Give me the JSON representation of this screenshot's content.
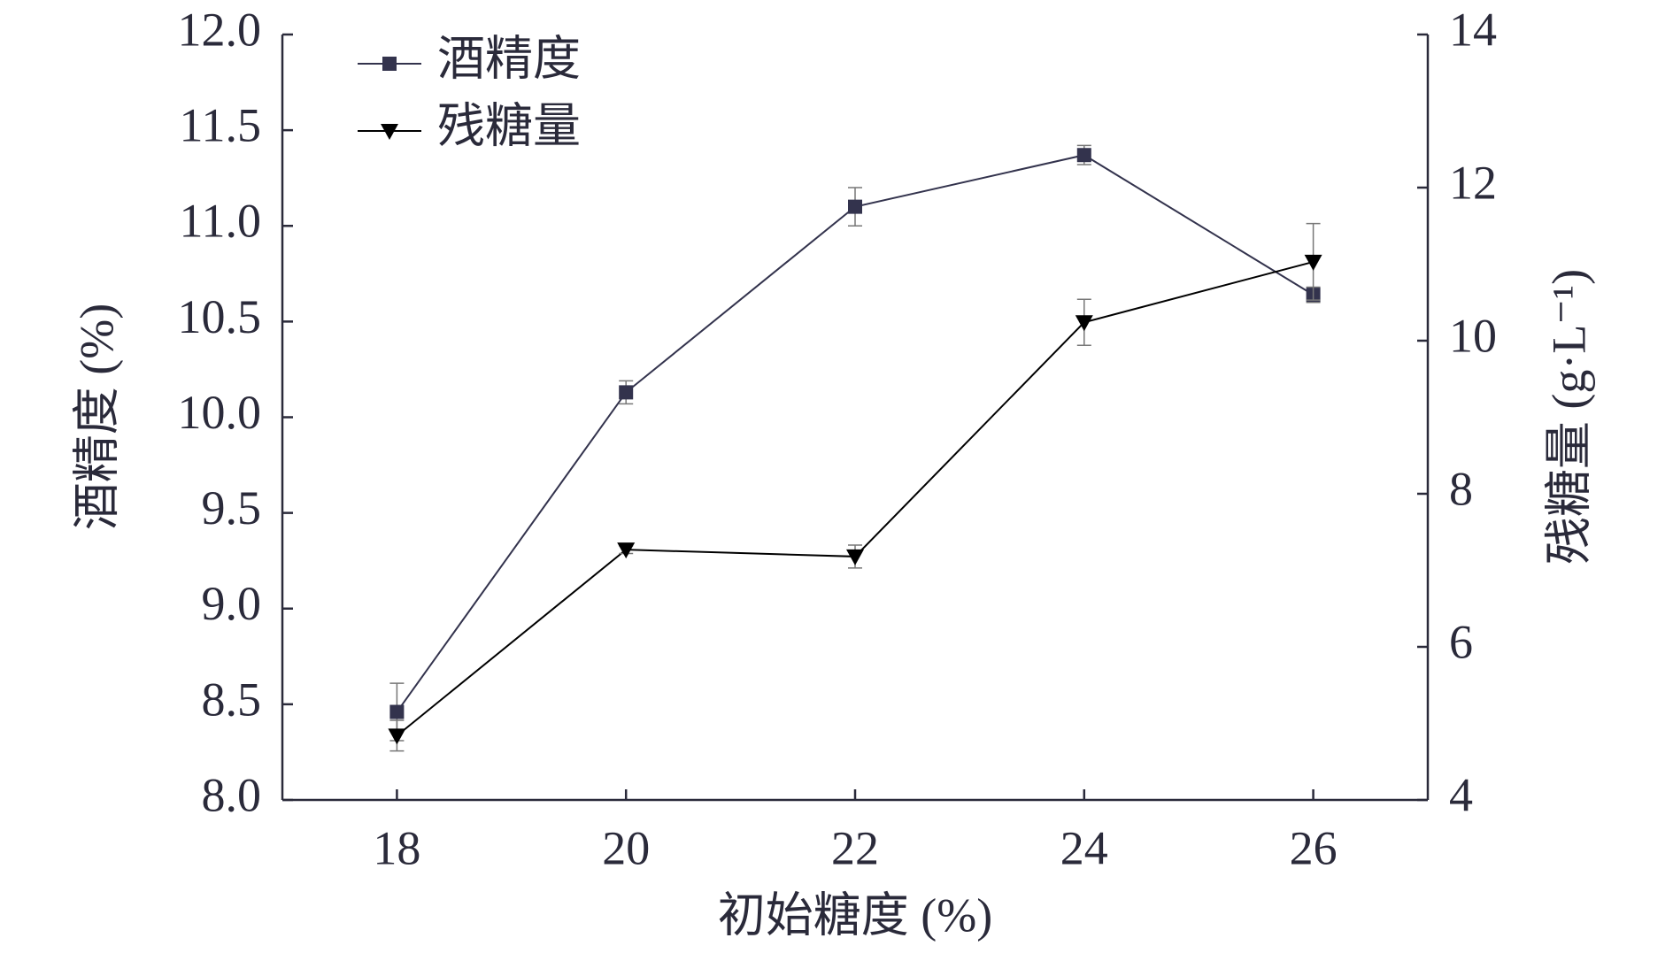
{
  "chart_data": {
    "type": "line",
    "x_label": "初始糖度 (%)",
    "y_label": "酒精度 (%)",
    "y2_label": "残糖量 (g·L⁻¹)",
    "x": [
      18,
      20,
      22,
      24,
      26
    ],
    "xlim": [
      17,
      27
    ],
    "xticks": [
      18,
      20,
      22,
      24,
      26
    ],
    "ylim": [
      8.0,
      12.0
    ],
    "yticks": [
      {
        "value": 8.0,
        "label": "8.0"
      },
      8.5,
      {
        "value": 9.0,
        "label": "9.0"
      },
      9.5,
      {
        "value": 10.0,
        "label": "10.0"
      },
      10.5,
      {
        "value": 11.0,
        "label": "11.0"
      },
      11.5,
      {
        "value": 12.0,
        "label": "12.0"
      }
    ],
    "y2lim": [
      4,
      14
    ],
    "y2ticks": [
      4,
      6,
      8,
      10,
      12,
      14
    ],
    "legend": "upper left",
    "series": [
      {
        "name": "酒精度",
        "color": "#33334d",
        "marker": "square",
        "values": [
          8.46,
          10.13,
          11.1,
          11.37,
          10.64
        ],
        "errors": [
          0.15,
          0.06,
          0.1,
          0.05,
          0.04
        ]
      },
      {
        "name": "残糖量",
        "color": "#000000",
        "marker": "triangle-down",
        "axis": "y2",
        "values": [
          4.84,
          7.27,
          7.18,
          10.24,
          11.03
        ],
        "errors": [
          0.2,
          0.05,
          0.15,
          0.3,
          0.5
        ]
      }
    ]
  }
}
